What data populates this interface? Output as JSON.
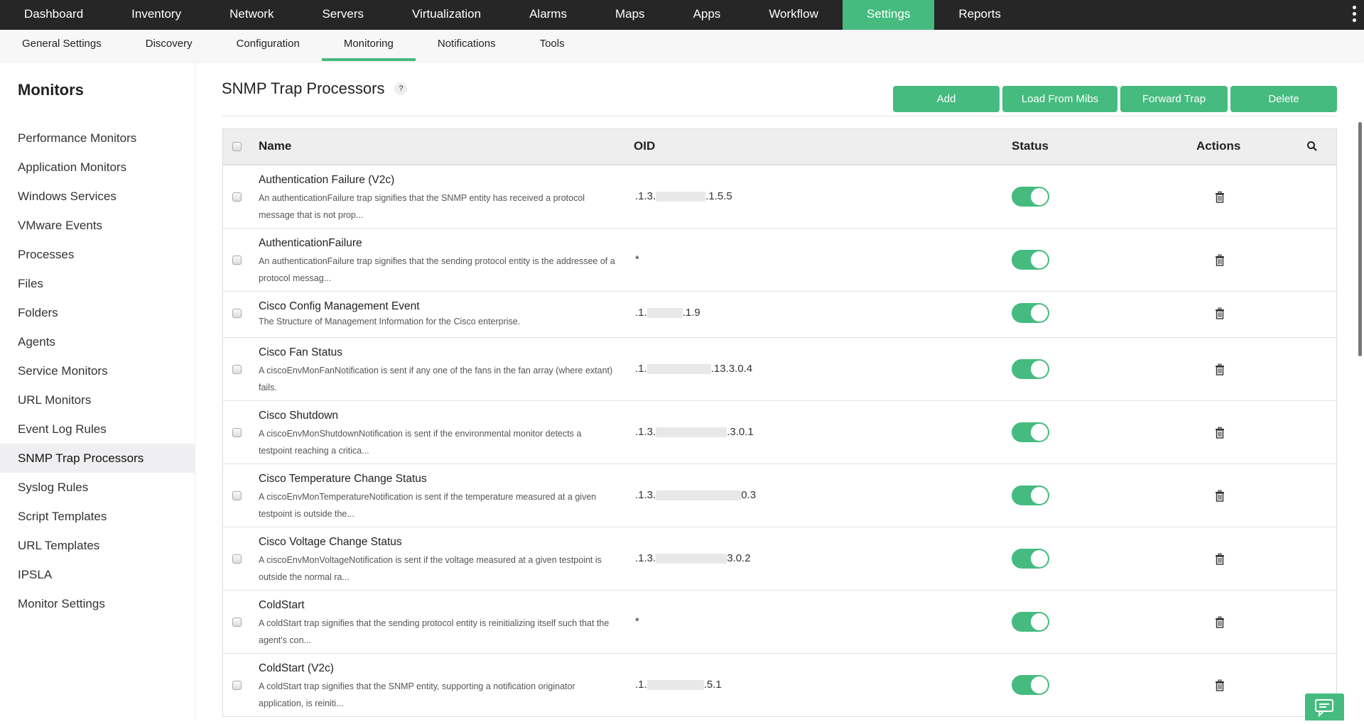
{
  "topnav": {
    "items": [
      "Dashboard",
      "Inventory",
      "Network",
      "Servers",
      "Virtualization",
      "Alarms",
      "Maps",
      "Apps",
      "Workflow",
      "Settings",
      "Reports"
    ],
    "active": "Settings"
  },
  "subnav": {
    "items": [
      "General Settings",
      "Discovery",
      "Configuration",
      "Monitoring",
      "Notifications",
      "Tools"
    ],
    "active": "Monitoring"
  },
  "sidebar": {
    "title": "Monitors",
    "items": [
      "Performance Monitors",
      "Application Monitors",
      "Windows Services",
      "VMware Events",
      "Processes",
      "Files",
      "Folders",
      "Agents",
      "Service Monitors",
      "URL Monitors",
      "Event Log Rules",
      "SNMP Trap Processors",
      "Syslog Rules",
      "Script Templates",
      "URL Templates",
      "IPSLA",
      "Monitor Settings"
    ],
    "active": "SNMP Trap Processors"
  },
  "page": {
    "title": "SNMP Trap Processors",
    "help": "?",
    "buttons": {
      "add": "Add",
      "load": "Load From Mibs",
      "forward": "Forward Trap",
      "delete": "Delete"
    }
  },
  "table": {
    "headers": {
      "name": "Name",
      "oid": "OID",
      "status": "Status",
      "actions": "Actions"
    },
    "rows": [
      {
        "name": "Authentication Failure (V2c)",
        "desc": "An authenticationFailure trap signifies that the SNMP entity has received a protocol message that is not prop...",
        "oid_pre": ".1.3.",
        "oid_post": ".1.5.5",
        "status": true
      },
      {
        "name": "AuthenticationFailure",
        "desc": "An authenticationFailure trap signifies that the sending protocol entity is the addressee of a protocol messag...",
        "oid_pre": "*",
        "oid_post": "",
        "status": true
      },
      {
        "name": "Cisco Config Management Event",
        "desc": "The Structure of Management Information for the Cisco enterprise.",
        "oid_pre": ".1.",
        "oid_post": ".1.9",
        "status": true
      },
      {
        "name": "Cisco Fan Status",
        "desc": "A ciscoEnvMonFanNotification is sent if any one of the fans in the fan array (where extant) fails.",
        "oid_pre": ".1.",
        "oid_post": ".13.3.0.4",
        "status": true
      },
      {
        "name": "Cisco Shutdown",
        "desc": "A ciscoEnvMonShutdownNotification is sent if the environmental monitor detects a testpoint reaching a critica...",
        "oid_pre": ".1.3.",
        "oid_post": ".3.0.1",
        "status": true
      },
      {
        "name": "Cisco Temperature Change Status",
        "desc": "A ciscoEnvMonTemperatureNotification is sent if the temperature measured at a given testpoint is outside the...",
        "oid_pre": ".1.3.",
        "oid_post": "0.3",
        "status": true
      },
      {
        "name": "Cisco Voltage Change Status",
        "desc": "A ciscoEnvMonVoltageNotification is sent if the voltage measured at a given testpoint is outside the normal ra...",
        "oid_pre": ".1.3.",
        "oid_post": "3.0.2",
        "status": true
      },
      {
        "name": "ColdStart",
        "desc": "A coldStart trap signifies that the sending protocol entity is reinitializing itself such that the agent's con...",
        "oid_pre": "*",
        "oid_post": "",
        "status": true
      },
      {
        "name": "ColdStart (V2c)",
        "desc": "A coldStart trap signifies that the SNMP entity, supporting a notification originator application, is reiniti...",
        "oid_pre": ".1.",
        "oid_post": ".5.1",
        "status": true
      }
    ]
  },
  "colors": {
    "accent": "#45bb7f",
    "topnav_bg": "#262626"
  }
}
